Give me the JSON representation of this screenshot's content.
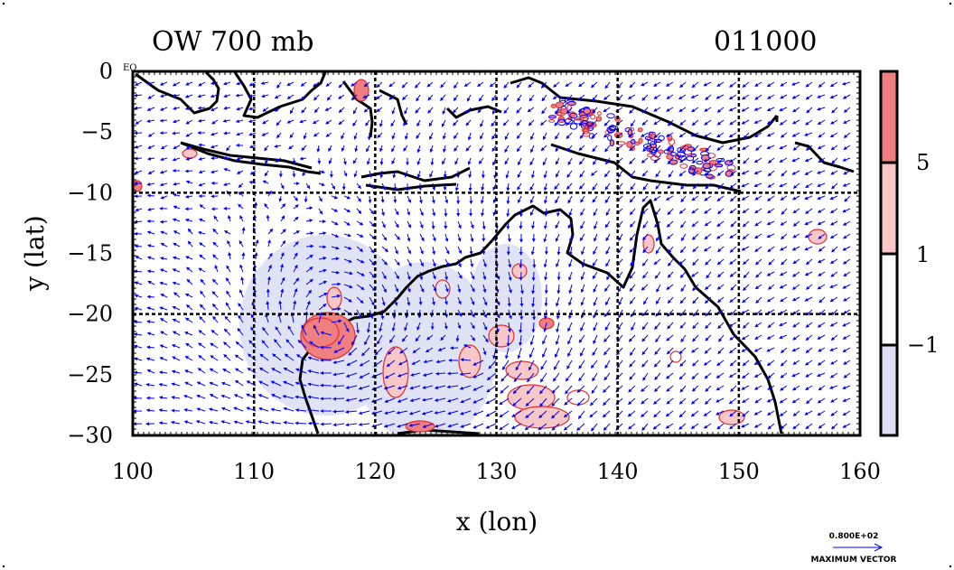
{
  "title_left": "OW 700 mb",
  "title_right": "011000",
  "eq_label": "EQ",
  "x_axis_label": "x (lon)",
  "y_axis_label": "y (lat)",
  "x_ticks": [
    "100",
    "110",
    "120",
    "130",
    "140",
    "150",
    "160"
  ],
  "y_ticks": [
    "0",
    "−5",
    "−10",
    "−15",
    "−20",
    "−25",
    "−30"
  ],
  "colorbar_labels": [
    "5",
    "1",
    "−1"
  ],
  "vector_scale_value": "0.800E+02",
  "vector_scale_caption": "MAXIMUM VECTOR",
  "colors": {
    "wind_vector": "#0000ff",
    "contour_positive": "#e03030",
    "fill_strong": "#f08080",
    "fill_weak": "#f8c8c8",
    "fill_negative": "#dde0f5",
    "coast": "#000000"
  },
  "map": {
    "lon_range": [
      100,
      160
    ],
    "lat_range": [
      -30,
      0
    ],
    "grid_lon": [
      110,
      120,
      130,
      140,
      150
    ],
    "grid_lat": [
      -10,
      -20
    ],
    "cyclone_centers": [
      [
        116.5,
        -21.5
      ],
      [
        129,
        -23
      ]
    ]
  }
}
